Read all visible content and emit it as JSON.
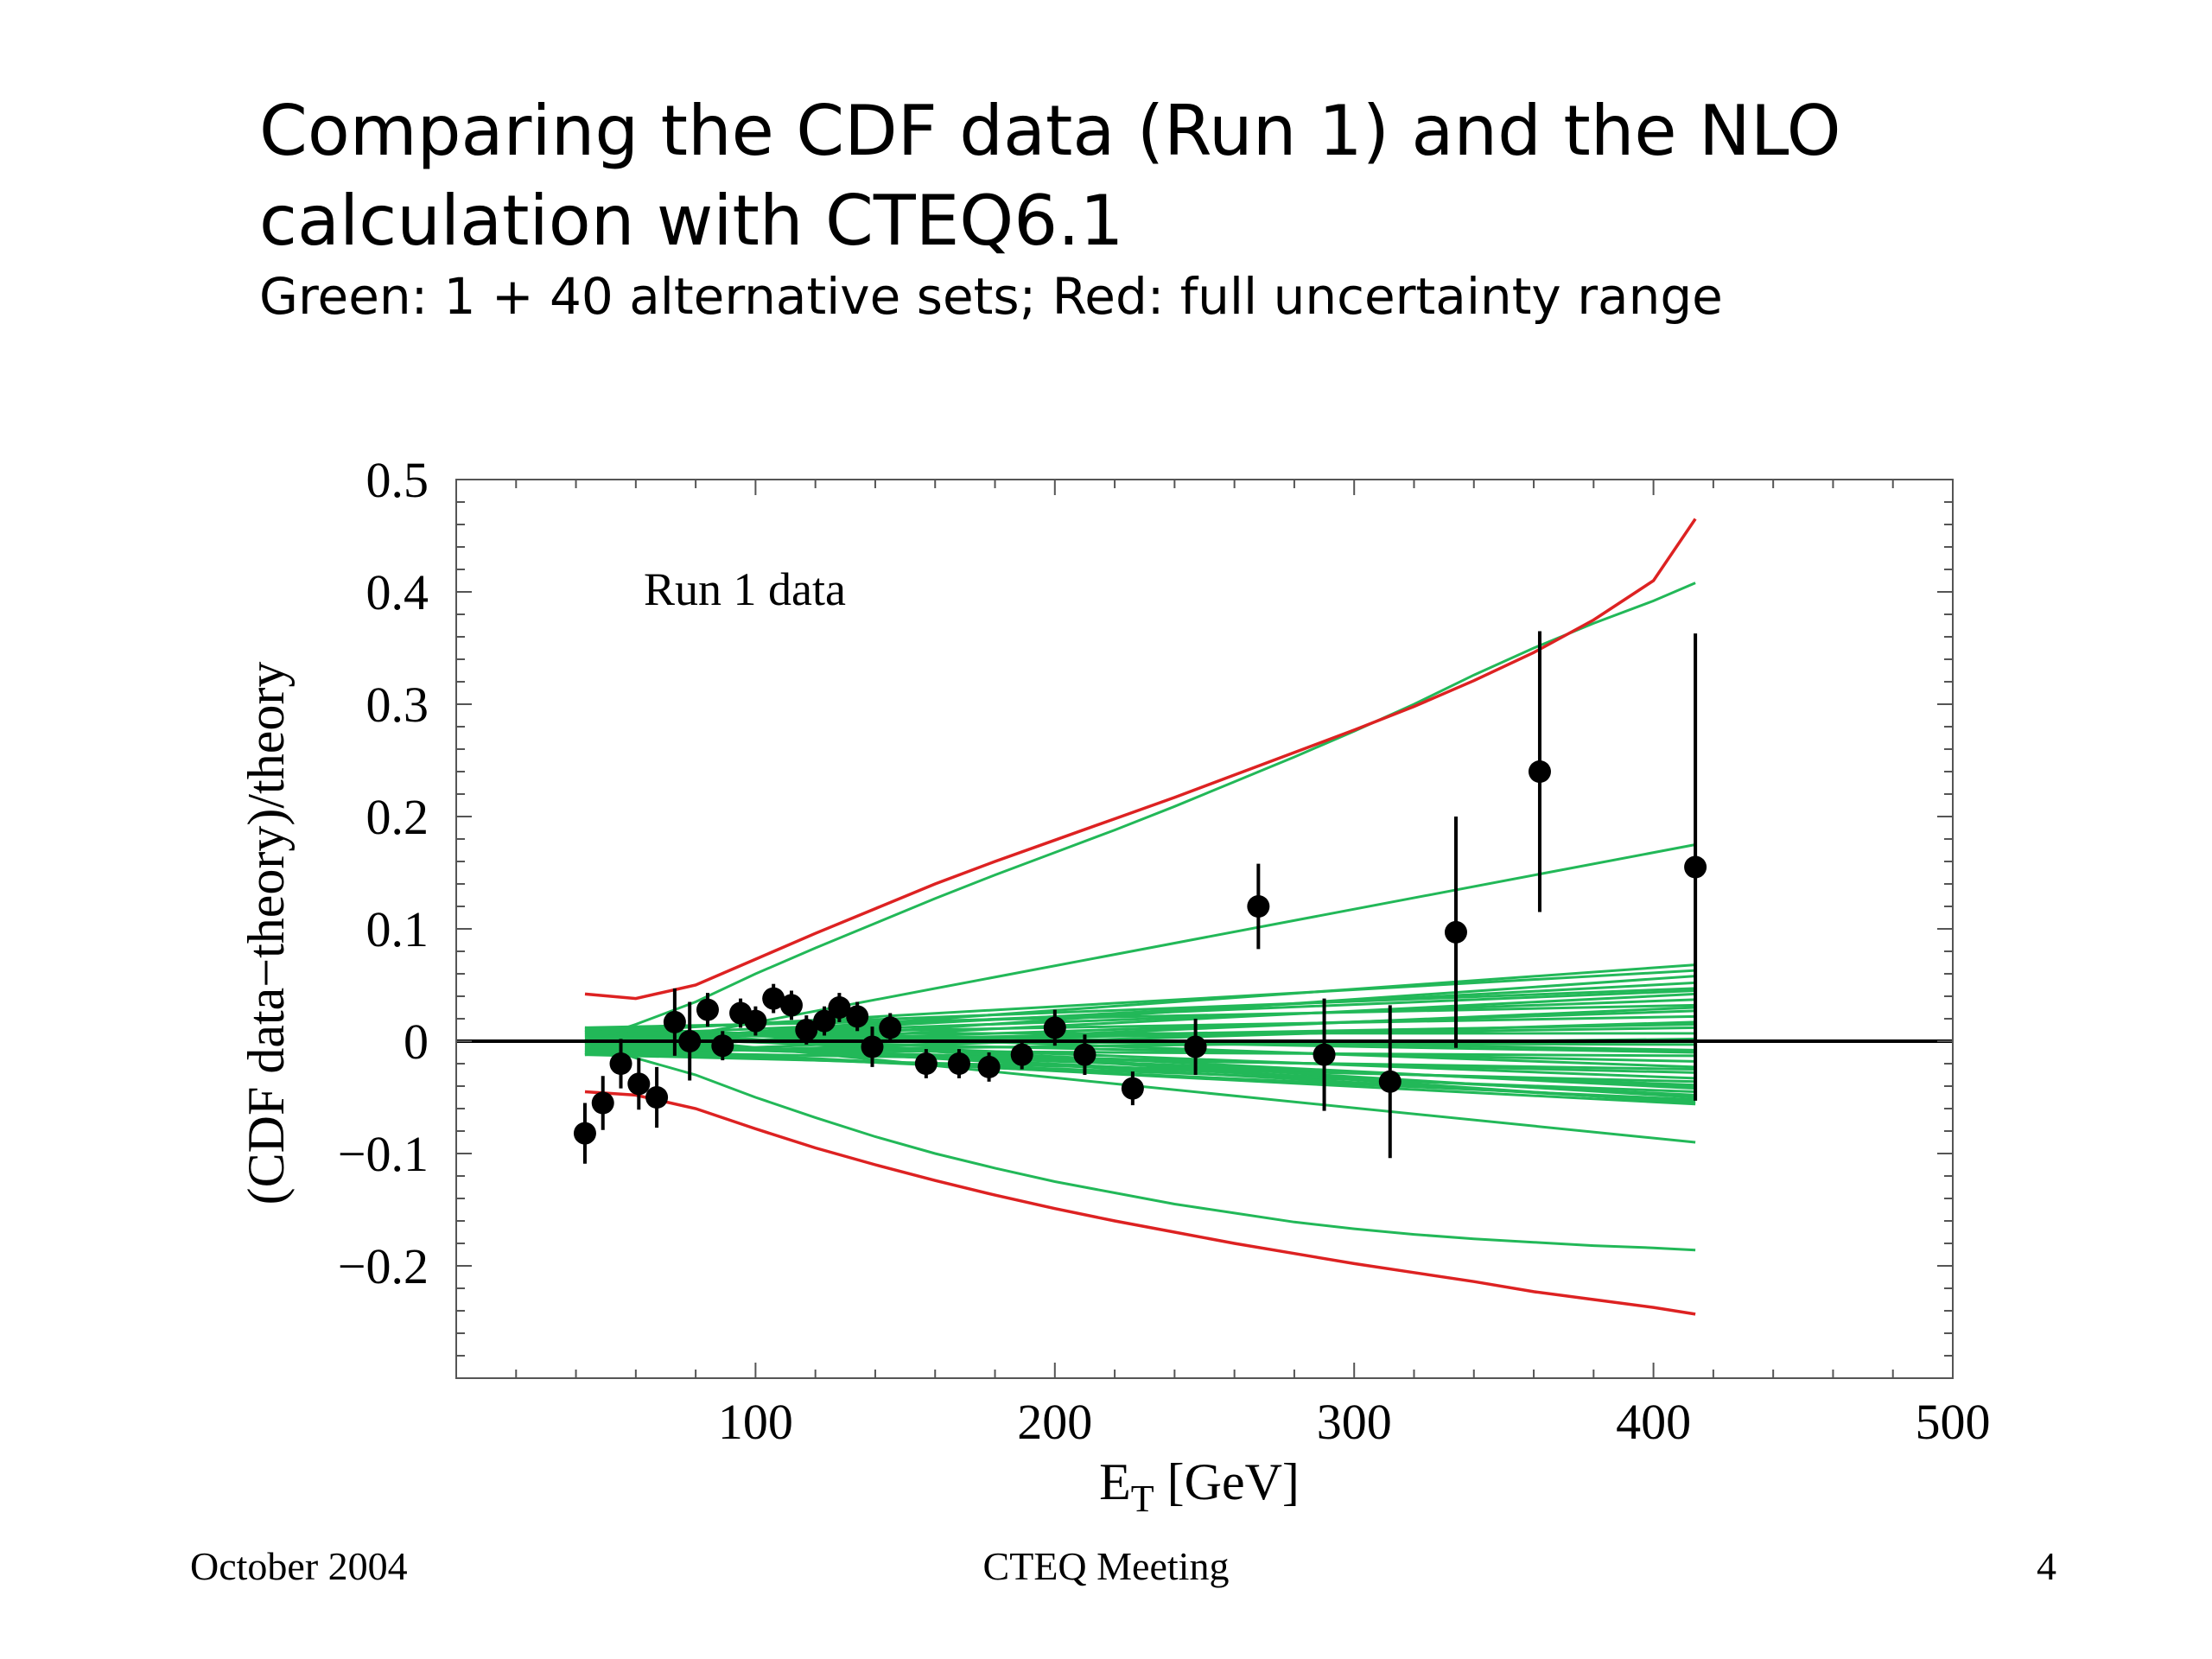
{
  "slide": {
    "title": "Comparing the CDF data (Run 1) and the NLO calculation with CTEQ6.1",
    "subtitle": "Green: 1 + 40 alternative sets; Red: full uncertainty range"
  },
  "footer": {
    "left": "October 2004",
    "center": "CTEQ Meeting",
    "page_number": "4"
  },
  "chart_data": {
    "type": "scatter",
    "annotation": "Run 1 data",
    "xlabel": "E",
    "xlabel_sub": "T",
    "xlabel_unit": " [GeV]",
    "ylabel": "(CDF data−theory)/theory",
    "xlim": [
      0,
      500
    ],
    "ylim": [
      -0.3,
      0.5
    ],
    "xticks": [
      100,
      200,
      300,
      400,
      500
    ],
    "xtick_labels": [
      "100",
      "200",
      "300",
      "400",
      "500"
    ],
    "yticks": [
      -0.2,
      -0.1,
      0,
      0.1,
      0.2,
      0.3,
      0.4,
      0.5
    ],
    "ytick_labels": [
      "−0.2",
      "−0.1",
      "0",
      "0.1",
      "0.2",
      "0.3",
      "0.4",
      "0.5"
    ],
    "grid": false,
    "colors": {
      "data": "#000000",
      "alternative_sets": "#22b858",
      "uncertainty_range": "#dd2222",
      "zero_line": "#000000",
      "frame": "#555555"
    },
    "data_points": [
      {
        "x": 43,
        "y": -0.082,
        "err": 0.027
      },
      {
        "x": 49,
        "y": -0.055,
        "err": 0.024
      },
      {
        "x": 55,
        "y": -0.02,
        "err": 0.022
      },
      {
        "x": 61,
        "y": -0.038,
        "err": 0.023
      },
      {
        "x": 67,
        "y": -0.05,
        "err": 0.027
      },
      {
        "x": 73,
        "y": 0.017,
        "err": 0.03
      },
      {
        "x": 78,
        "y": 0.0,
        "err": 0.035
      },
      {
        "x": 84,
        "y": 0.028,
        "err": 0.015
      },
      {
        "x": 89,
        "y": -0.004,
        "err": 0.013
      },
      {
        "x": 95,
        "y": 0.025,
        "err": 0.013
      },
      {
        "x": 100,
        "y": 0.018,
        "err": 0.013
      },
      {
        "x": 106,
        "y": 0.038,
        "err": 0.013
      },
      {
        "x": 112,
        "y": 0.032,
        "err": 0.013
      },
      {
        "x": 117,
        "y": 0.01,
        "err": 0.013
      },
      {
        "x": 123,
        "y": 0.018,
        "err": 0.013
      },
      {
        "x": 128,
        "y": 0.03,
        "err": 0.013
      },
      {
        "x": 134,
        "y": 0.022,
        "err": 0.013
      },
      {
        "x": 139,
        "y": -0.005,
        "err": 0.018
      },
      {
        "x": 145,
        "y": 0.012,
        "err": 0.013
      },
      {
        "x": 157,
        "y": -0.02,
        "err": 0.013
      },
      {
        "x": 168,
        "y": -0.02,
        "err": 0.013
      },
      {
        "x": 178,
        "y": -0.023,
        "err": 0.013
      },
      {
        "x": 189,
        "y": -0.012,
        "err": 0.013
      },
      {
        "x": 200,
        "y": 0.012,
        "err": 0.016
      },
      {
        "x": 210,
        "y": -0.012,
        "err": 0.018
      },
      {
        "x": 226,
        "y": -0.042,
        "err": 0.015
      },
      {
        "x": 247,
        "y": -0.005,
        "err": 0.025
      },
      {
        "x": 268,
        "y": 0.12,
        "err": 0.038
      },
      {
        "x": 290,
        "y": -0.012,
        "err": 0.05
      },
      {
        "x": 312,
        "y": -0.036,
        "err": 0.068
      },
      {
        "x": 334,
        "y": 0.097,
        "err": 0.103
      },
      {
        "x": 362,
        "y": 0.24,
        "err": 0.125
      },
      {
        "x": 414,
        "y": 0.155,
        "err": 0.208
      }
    ],
    "curve_x": [
      43,
      60,
      80,
      100,
      120,
      140,
      160,
      180,
      200,
      220,
      240,
      260,
      280,
      300,
      320,
      340,
      360,
      380,
      400,
      414
    ],
    "red_upper": [
      0.042,
      0.038,
      0.05,
      0.073,
      0.096,
      0.118,
      0.14,
      0.16,
      0.179,
      0.198,
      0.217,
      0.237,
      0.257,
      0.277,
      0.298,
      0.321,
      0.346,
      0.375,
      0.41,
      0.465
    ],
    "red_lower": [
      -0.045,
      -0.048,
      -0.06,
      -0.078,
      -0.095,
      -0.11,
      -0.124,
      -0.137,
      -0.149,
      -0.16,
      -0.17,
      -0.18,
      -0.189,
      -0.198,
      -0.206,
      -0.214,
      -0.223,
      -0.23,
      -0.237,
      -0.243
    ],
    "green_outer_upper": [
      0.0,
      0.015,
      0.035,
      0.06,
      0.083,
      0.105,
      0.127,
      0.148,
      0.168,
      0.188,
      0.209,
      0.231,
      0.253,
      0.276,
      0.3,
      0.326,
      0.35,
      0.372,
      0.392,
      0.408
    ],
    "green_outer_lower": [
      0.0,
      -0.015,
      -0.03,
      -0.05,
      -0.068,
      -0.085,
      -0.1,
      -0.113,
      -0.125,
      -0.135,
      -0.145,
      -0.153,
      -0.161,
      -0.167,
      -0.172,
      -0.176,
      -0.179,
      -0.182,
      -0.184,
      -0.186
    ],
    "green_end_values": [
      0.175,
      0.068,
      0.063,
      0.058,
      0.052,
      0.047,
      0.042,
      0.037,
      0.032,
      0.027,
      0.022,
      0.017,
      0.012,
      0.007,
      0.002,
      -0.003,
      -0.008,
      -0.013,
      -0.018,
      -0.023,
      -0.028,
      -0.033,
      -0.036,
      -0.039,
      -0.042,
      -0.045,
      -0.048,
      -0.05,
      -0.052,
      -0.054,
      -0.055,
      -0.056,
      0.045,
      0.03,
      0.015,
      -0.01,
      -0.025,
      -0.04,
      -0.09
    ]
  }
}
